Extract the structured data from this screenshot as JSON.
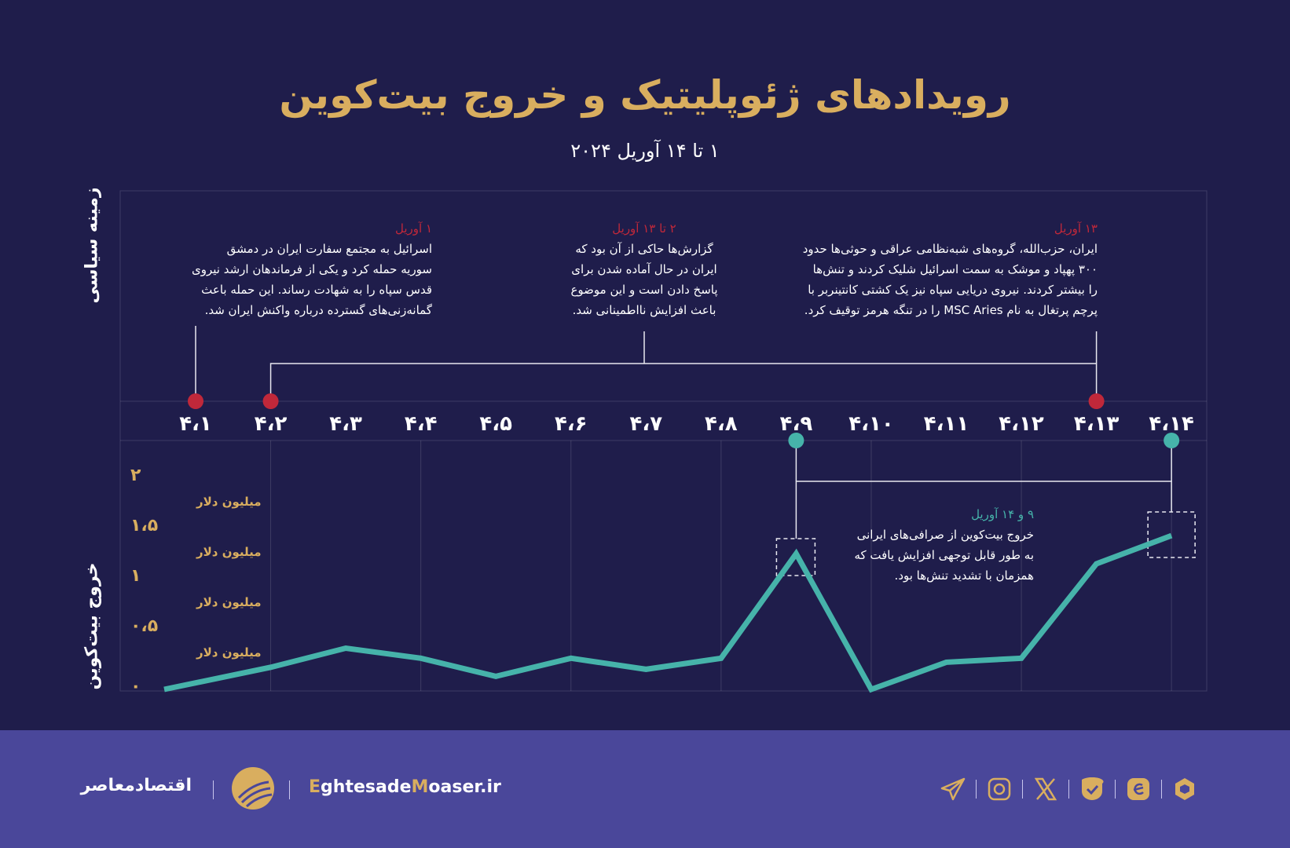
{
  "header": {
    "title": "رویدادهای ژئوپلیتیک و خروج بیت‌کوین",
    "subtitle": "۱ تا ۱۴ آوریل ۲۰۲۴"
  },
  "side_labels": {
    "political": "زمینه سیاسی",
    "bitcoin": "خروج بیت‌کوین"
  },
  "annotations": [
    {
      "date": "۱ آوریل",
      "lines": [
        "اسرائیل به مجتمع سفارت ایران در دمشق",
        "سوریه حمله کرد و یکی از فرماندهان ارشد نیروی",
        "قدس سپاه را به شهادت رساند. این حمله باعث",
        "گمانه‌زنی‌های گسترده درباره واکنش ایران شد."
      ]
    },
    {
      "date": "۲ تا ۱۳ آوریل",
      "lines": [
        "گزارش‌ها حاکی از آن بود که",
        "ایران در حال آماده شدن برای",
        "پاسخ دادن است و این موضوع",
        "باعث افزایش نااطمینانی شد."
      ]
    },
    {
      "date": "۱۳ آوریل",
      "lines": [
        "ایران، حزب‌الله، گروه‌های شبه‌نظامی عراقی و حوثی‌ها حدود",
        "۳۰۰ پهپاد و موشک به سمت اسرائیل شلیک کردند و تنش‌ها",
        "را بیشتر کردند. نیروی دریایی سپاه نیز یک کشتی کانتینربر با",
        "پرچم پرتغال به نام MSC Aries را در تنگه هرمز توقیف کرد."
      ]
    },
    {
      "date": "۹ و ۱۴ آوریل",
      "lines": [
        "خروج بیت‌کوین از صرافی‌های ایرانی",
        "به طور قابل توجهی افزایش یافت که",
        "همزمان با تشدید تنش‌ها بود."
      ]
    }
  ],
  "chart_data": {
    "type": "line",
    "title": "رویدادهای ژئوپلیتیک و خروج بیت‌کوین",
    "categories": [
      "۴،۱",
      "۴،۲",
      "۴،۳",
      "۴،۴",
      "۴،۵",
      "۴،۶",
      "۴،۷",
      "۴،۸",
      "۴،۹",
      "۴،۱۰",
      "۴،۱۱",
      "۴،۱۲",
      "۴،۱۳",
      "۴،۱۴"
    ],
    "series": [
      {
        "values": [
          0.0,
          0.22,
          0.41,
          0.31,
          0.13,
          0.31,
          0.2,
          0.31,
          1.35,
          0.0,
          0.27,
          0.31,
          1.25,
          1.53
        ]
      }
    ],
    "ylim": [
      0,
      2
    ],
    "yticks": [
      {
        "value": 0,
        "label": "۰",
        "unit": ""
      },
      {
        "value": 0.5,
        "label": "۰،۵",
        "unit": "میلیون دلار"
      },
      {
        "value": 1,
        "label": "۱",
        "unit": "میلیون دلار"
      },
      {
        "value": 1.5,
        "label": "۱،۵",
        "unit": "میلیون دلار"
      },
      {
        "value": 2,
        "label": "۲",
        "unit": "میلیون دلار"
      }
    ],
    "event_markers_red": [
      0,
      1,
      12
    ],
    "event_markers_teal": [
      8,
      13
    ],
    "grid": "vertical",
    "colors": {
      "line": "#46b3aa",
      "event_red": "#c0283a",
      "event_teal": "#46b3aa",
      "axis_labels": "#d9ae5f",
      "background": "#1f1d4b"
    }
  },
  "footer": {
    "brand_name": "اقتصادمعاصر",
    "website_prefix1": "E",
    "website_part1": "ghtesade",
    "website_prefix2": "M",
    "website_part2": "oaser.ir",
    "social_icons": [
      "telegram-icon",
      "instagram-icon",
      "x-icon",
      "bale-icon",
      "eitaa-icon",
      "rubika-icon"
    ],
    "colors": {
      "background": "#4a479a",
      "accent": "#d9ae5f"
    }
  }
}
